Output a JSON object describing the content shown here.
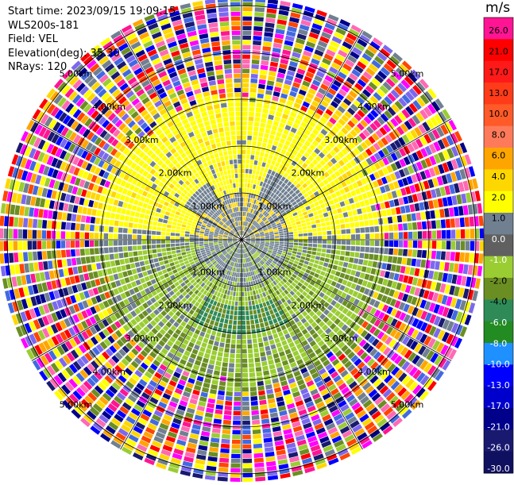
{
  "header": {
    "start_time": "Start time: 2023/09/15 19:09:15",
    "station": "WLS200s-181",
    "field": "Field: VEL",
    "elevation": "Elevation(deg): 35.30",
    "nrays": "NRays: 120"
  },
  "colorbar": {
    "unit": "m/s",
    "ticks": [
      "26.0",
      "21.0",
      "17.0",
      "13.0",
      "10.0",
      "8.0",
      "6.0",
      "4.0",
      "2.0",
      "1.0",
      "0.0",
      "-1.0",
      "-2.0",
      "-4.0",
      "-6.0",
      "-8.0",
      "-10.0",
      "-13.0",
      "-17.0",
      "-21.0",
      "-26.0",
      "-30.0"
    ],
    "colors": [
      "#ff1493",
      "#ff0000",
      "#ff1a1a",
      "#ff3b1a",
      "#ff5a28",
      "#ff7a5a",
      "#ffa500",
      "#ffd700",
      "#ffff00",
      "#708090",
      "#606060",
      "#9acd32",
      "#6b8e23",
      "#2e8b57",
      "#228b22",
      "#1e90ff",
      "#0000ff",
      "#0000cd",
      "#00008b",
      "#191970",
      "#101060"
    ]
  },
  "chart_data": {
    "type": "heatmap",
    "projection": "polar-ppi",
    "nrays": 120,
    "range_rings_km": [
      {
        "text": "1.00km",
        "r": 1
      },
      {
        "text": "2.00km",
        "r": 2
      },
      {
        "text": "3.00km",
        "r": 3
      },
      {
        "text": "4.00km",
        "r": 4
      },
      {
        "text": "5.00km",
        "r": 5
      }
    ],
    "spokes_deg": [
      0,
      30,
      60,
      90,
      120,
      150,
      180,
      210,
      240,
      270,
      300,
      330
    ],
    "vlim": [
      -30,
      30
    ]
  }
}
